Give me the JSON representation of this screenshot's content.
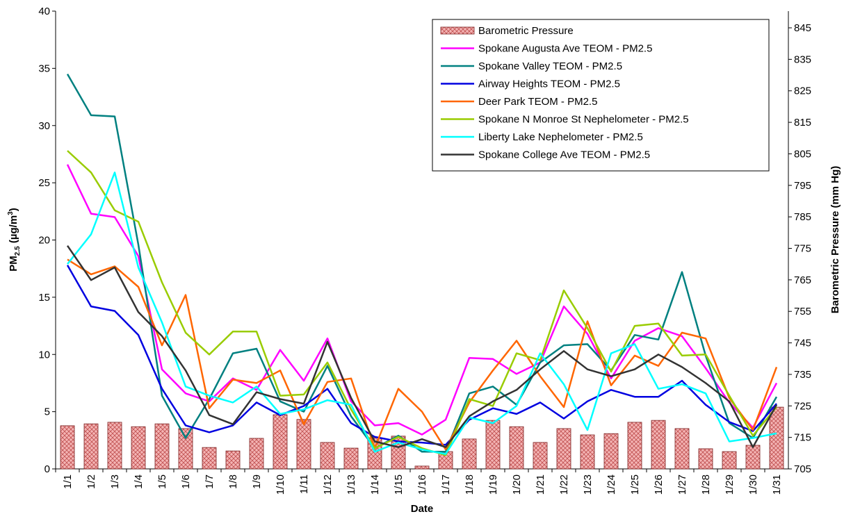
{
  "chart_data": {
    "type": "line",
    "categories": [
      "1/1",
      "1/2",
      "1/3",
      "1/4",
      "1/5",
      "1/6",
      "1/7",
      "1/8",
      "1/9",
      "1/10",
      "1/11",
      "1/12",
      "1/13",
      "1/14",
      "1/15",
      "1/16",
      "1/17",
      "1/18",
      "1/19",
      "1/20",
      "1/21",
      "1/22",
      "1/23",
      "1/24",
      "1/25",
      "1/26",
      "1/27",
      "1/28",
      "1/29",
      "1/30",
      "1/31"
    ],
    "x_label": "Date",
    "y_label": {
      "main": "PM",
      "sub": "2.5",
      "mid": " (µg/m",
      "sup": "3",
      "end": ")"
    },
    "y2_label": "Barometric Pressure (mm Hg)",
    "ylim": [
      0,
      40
    ],
    "yticks": [
      0,
      5,
      10,
      15,
      20,
      25,
      30,
      35,
      40
    ],
    "y2lim": [
      705,
      850.3
    ],
    "y2ticks": [
      705,
      715,
      725,
      735,
      745,
      755,
      765,
      775,
      785,
      795,
      805,
      815,
      825,
      835,
      845
    ],
    "legend": "upper right",
    "series": [
      {
        "name": "Barometric Pressure",
        "type": "bar",
        "axis": "y2",
        "color": "#f4b4b4",
        "values": [
          718.7,
          719.3,
          719.8,
          718.4,
          719.3,
          717.8,
          711.8,
          710.7,
          714.7,
          722.2,
          720.7,
          713.4,
          711.6,
          714.9,
          715.4,
          705.9,
          710.5,
          714.5,
          720.4,
          718.4,
          713.4,
          717.8,
          715.8,
          716.2,
          719.8,
          720.4,
          717.8,
          711.4,
          710.5,
          712.5,
          724.6
        ]
      },
      {
        "name": "Spokane Augusta Ave TEOM - PM2.5",
        "type": "line",
        "color": "#ff00ff",
        "values": [
          26.6,
          22.3,
          22.0,
          18.6,
          8.7,
          6.6,
          5.9,
          7.9,
          6.9,
          10.4,
          7.7,
          11.4,
          5.9,
          3.8,
          4.0,
          3.0,
          4.3,
          9.7,
          9.6,
          8.3,
          9.3,
          14.2,
          11.8,
          7.9,
          11.2,
          12.3,
          11.6,
          8.8,
          5.8,
          3.6,
          7.5
        ]
      },
      {
        "name": "Spokane Valley TEOM - PM2.5",
        "type": "line",
        "color": "#008080",
        "values": [
          34.5,
          30.9,
          30.8,
          19.6,
          6.4,
          2.7,
          6.1,
          10.1,
          10.5,
          5.9,
          5.0,
          9.0,
          4.6,
          1.8,
          2.9,
          1.5,
          1.5,
          6.6,
          7.2,
          5.6,
          9.3,
          10.8,
          10.9,
          8.6,
          11.7,
          11.3,
          17.2,
          9.9,
          4.0,
          2.7,
          6.3
        ]
      },
      {
        "name": "Airway Heights TEOM - PM2.5",
        "type": "line",
        "color": "#0000e0",
        "values": [
          17.8,
          14.2,
          13.8,
          11.7,
          7.0,
          3.8,
          3.2,
          3.8,
          5.8,
          4.7,
          5.5,
          7.0,
          4.0,
          2.8,
          2.4,
          2.3,
          2.1,
          4.3,
          5.3,
          4.8,
          5.8,
          4.4,
          5.9,
          6.9,
          6.3,
          6.3,
          7.7,
          5.6,
          4.1,
          3.3,
          5.7
        ]
      },
      {
        "name": "Deer Park TEOM - PM2.5",
        "type": "line",
        "color": "#ff6600",
        "values": [
          18.3,
          17.0,
          17.7,
          15.9,
          10.8,
          15.2,
          5.3,
          7.8,
          7.5,
          8.6,
          3.9,
          7.6,
          7.9,
          1.8,
          7.0,
          5.0,
          1.7,
          5.8,
          8.6,
          11.2,
          8.1,
          5.4,
          12.9,
          7.3,
          9.9,
          9.0,
          11.9,
          11.4,
          6.2,
          3.4,
          8.9
        ]
      },
      {
        "name": "Spokane N Monroe St Nephelometer - PM2.5",
        "type": "line",
        "color": "#99cc00",
        "values": [
          27.8,
          25.9,
          22.6,
          21.6,
          16.3,
          11.9,
          10.0,
          12.0,
          12.0,
          6.4,
          6.5,
          9.3,
          5.2,
          1.8,
          2.8,
          1.8,
          1.2,
          6.1,
          5.5,
          10.1,
          9.5,
          15.6,
          12.3,
          8.5,
          12.5,
          12.7,
          9.9,
          10.0,
          6.4,
          2.9,
          5.4
        ]
      },
      {
        "name": "Liberty Lake Nephelometer - PM2.5",
        "type": "line",
        "color": "#00ffff",
        "values": [
          17.9,
          20.5,
          25.9,
          17.6,
          12.8,
          7.2,
          6.4,
          5.8,
          7.2,
          4.8,
          5.2,
          6.0,
          5.6,
          1.5,
          2.3,
          1.7,
          1.3,
          4.5,
          4.0,
          5.5,
          10.1,
          7.4,
          3.4,
          10.1,
          10.9,
          7.0,
          7.4,
          6.6,
          2.4,
          2.7,
          3.1
        ]
      },
      {
        "name": "Spokane College Ave TEOM - PM2.5",
        "type": "line",
        "color": "#333333",
        "values": [
          19.5,
          16.5,
          17.6,
          13.7,
          11.6,
          8.6,
          4.7,
          3.9,
          6.7,
          6.1,
          5.7,
          11.1,
          6.2,
          2.4,
          1.9,
          2.6,
          1.9,
          4.6,
          5.9,
          6.9,
          8.7,
          10.3,
          8.7,
          8.1,
          8.7,
          10.0,
          8.9,
          7.5,
          5.9,
          1.9,
          5.6
        ]
      }
    ]
  }
}
